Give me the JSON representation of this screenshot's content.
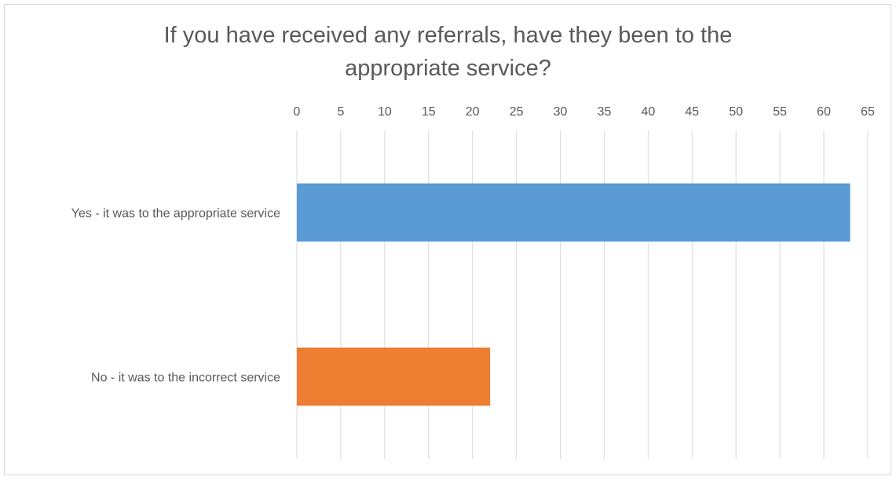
{
  "chart_data": {
    "type": "bar",
    "orientation": "horizontal",
    "title_lines": [
      "If you have received any referrals, have they been to the",
      "appropriate service?"
    ],
    "categories": [
      "Yes - it was to the appropriate service",
      "No - it was to the incorrect service"
    ],
    "values": [
      63,
      22
    ],
    "bar_colors": [
      "#5b9bd5",
      "#ed7d31"
    ],
    "xlim": [
      0,
      65
    ],
    "x_ticks": [
      0,
      5,
      10,
      15,
      20,
      25,
      30,
      35,
      40,
      45,
      50,
      55,
      60,
      65
    ],
    "x_axis_position": "top",
    "grid": true,
    "gridline_color": "#d9d9d9",
    "legend": "none",
    "xlabel": "",
    "ylabel": ""
  }
}
